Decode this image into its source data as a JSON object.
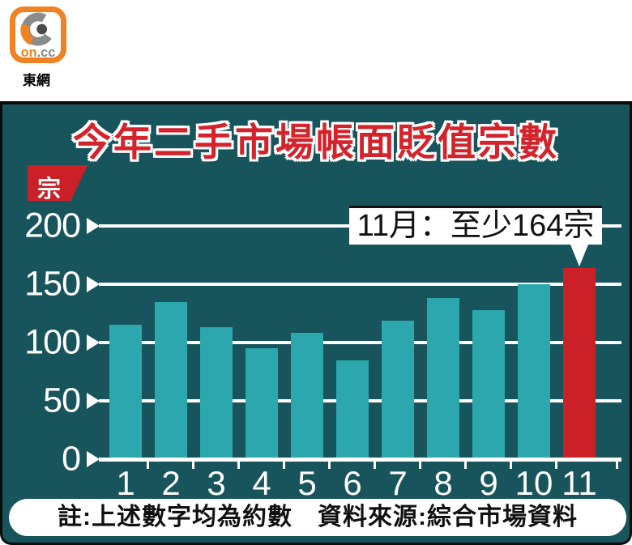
{
  "brand": {
    "logo_on": "on",
    "logo_cc": ".cc",
    "name": "東網"
  },
  "chart_data": {
    "type": "bar",
    "title": "今年二手市場帳面貶值宗數",
    "ylabel": "宗",
    "xlabel": "",
    "unit_label": "宗",
    "categories": [
      "1",
      "2",
      "3",
      "4",
      "5",
      "6",
      "7",
      "8",
      "9",
      "10",
      "11"
    ],
    "values": [
      115,
      135,
      113,
      95,
      108,
      85,
      119,
      138,
      128,
      150,
      164
    ],
    "highlight_index": 10,
    "annotation": "11月：至少164宗",
    "yticks": [
      0,
      50,
      100,
      150,
      200
    ],
    "ylim": [
      0,
      200
    ],
    "grid": true,
    "note": "註:上述數字均為約數　資料來源:綜合市場資料",
    "colors": {
      "background": "#18545c",
      "bar": "#2ba7ad",
      "highlight": "#cc2028",
      "grid": "#ffffff",
      "title": "#d4232b",
      "tag": "#cc2028",
      "logo_orange": "#ef8222"
    }
  }
}
